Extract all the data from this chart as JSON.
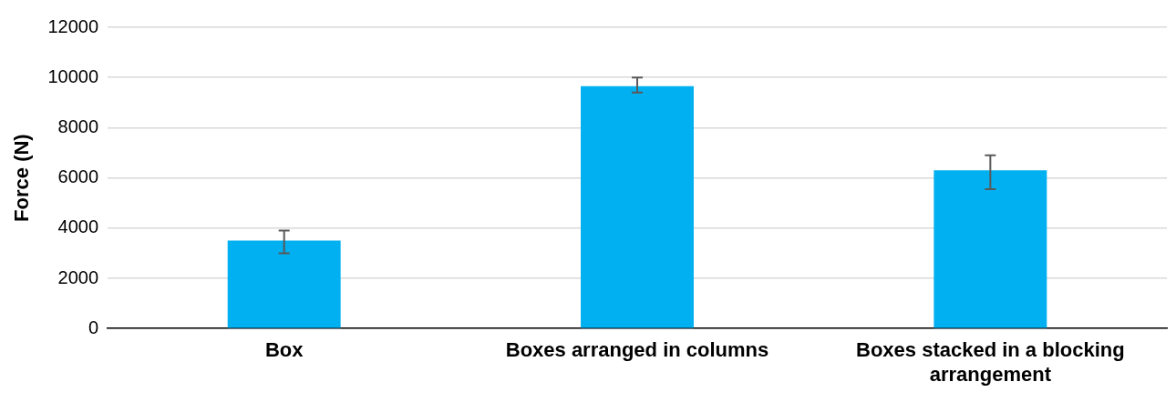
{
  "chart_data": {
    "type": "bar",
    "ylabel": "Force (N)",
    "categories": [
      "Box",
      "Boxes arranged in columns",
      "Boxes stacked in a blocking arrangement"
    ],
    "values": [
      3500,
      9650,
      6300
    ],
    "errors": [
      [
        3000,
        3900
      ],
      [
        9400,
        10000
      ],
      [
        5550,
        6900
      ]
    ],
    "color": "#00b0f0",
    "ylim": [
      0,
      12000
    ],
    "yticks": [
      0,
      2000,
      4000,
      6000,
      8000,
      10000,
      12000
    ],
    "grid": "y",
    "legend": false
  }
}
